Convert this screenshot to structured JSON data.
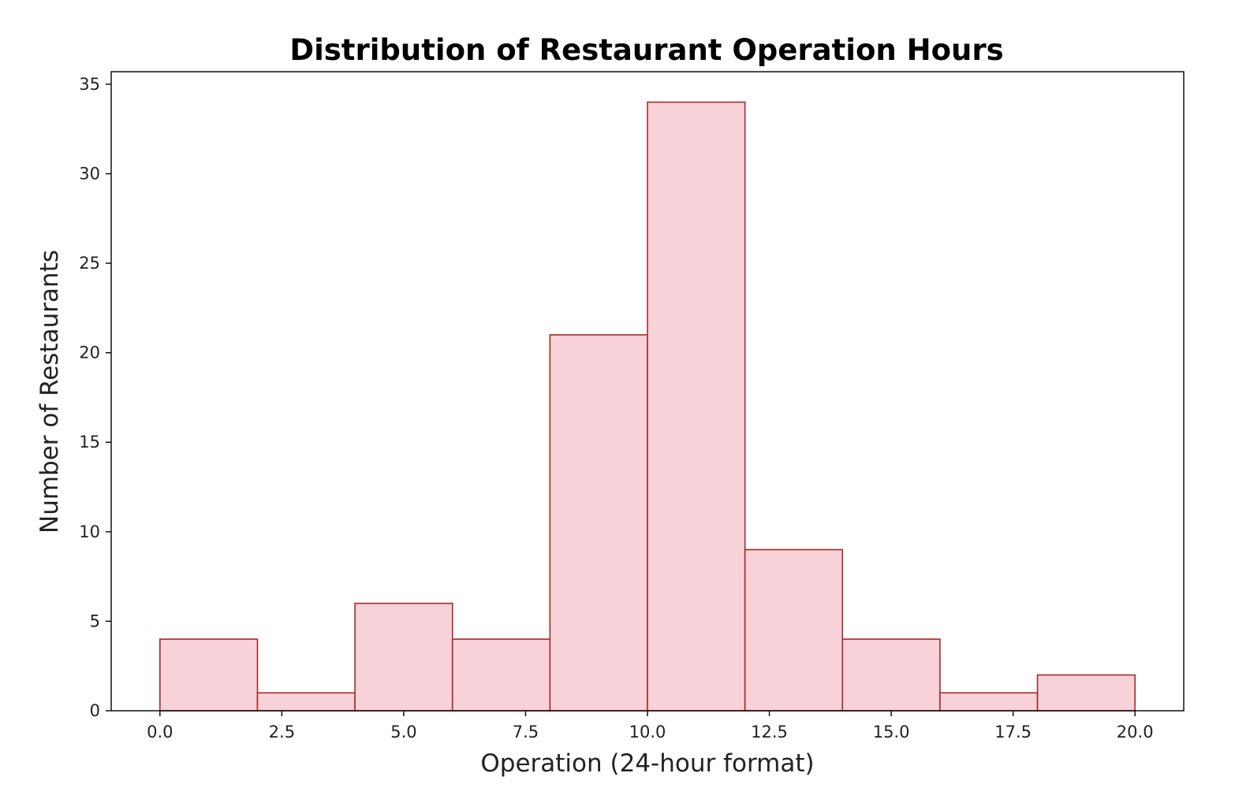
{
  "chart_data": {
    "type": "bar",
    "title": "Distribution of Restaurant Operation Hours",
    "xlabel": "Operation (24-hour format)",
    "ylabel": "Number of Restaurants",
    "bin_edges": [
      0,
      2,
      4,
      6,
      8,
      10,
      12,
      14,
      16,
      18,
      20
    ],
    "values": [
      4,
      1,
      6,
      4,
      21,
      34,
      9,
      4,
      1,
      2
    ],
    "xlim": [
      -1,
      21
    ],
    "ylim": [
      0,
      35.7
    ],
    "xticks": [
      {
        "value": 0,
        "label": "0.0"
      },
      {
        "value": 2.5,
        "label": "2.5"
      },
      {
        "value": 5,
        "label": "5.0"
      },
      {
        "value": 7.5,
        "label": "7.5"
      },
      {
        "value": 10,
        "label": "10.0"
      },
      {
        "value": 12.5,
        "label": "12.5"
      },
      {
        "value": 15,
        "label": "15.0"
      },
      {
        "value": 17.5,
        "label": "17.5"
      },
      {
        "value": 20,
        "label": "20.0"
      }
    ],
    "yticks": [
      {
        "value": 0,
        "label": "0"
      },
      {
        "value": 5,
        "label": "5"
      },
      {
        "value": 10,
        "label": "10"
      },
      {
        "value": 15,
        "label": "15"
      },
      {
        "value": 20,
        "label": "20"
      },
      {
        "value": 25,
        "label": "25"
      },
      {
        "value": 30,
        "label": "30"
      },
      {
        "value": 35,
        "label": "35"
      }
    ],
    "grid": false,
    "legend": "none",
    "colors": {
      "bar_fill": "#f8d2d9",
      "bar_edge": "#a52a2a",
      "axis": "#000000",
      "background": "#ffffff"
    }
  }
}
